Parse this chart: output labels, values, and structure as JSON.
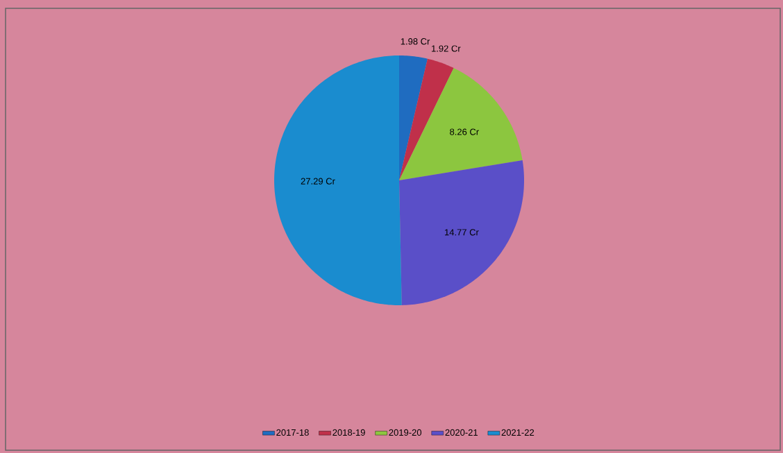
{
  "chart_data": {
    "type": "pie",
    "categories": [
      "2017-18",
      "2018-19",
      "2019-20",
      "2020-21",
      "2021-22"
    ],
    "values": [
      1.98,
      1.92,
      8.26,
      14.77,
      27.29
    ],
    "value_labels": [
      "1.98 Cr",
      "1.92 Cr",
      "8.26 Cr",
      "14.77 Cr",
      "27.29 Cr"
    ],
    "colors": [
      "#1f6cc0",
      "#c0304a",
      "#8cc63f",
      "#5a4fc8",
      "#1a8ccf"
    ],
    "legend": "bottom"
  }
}
